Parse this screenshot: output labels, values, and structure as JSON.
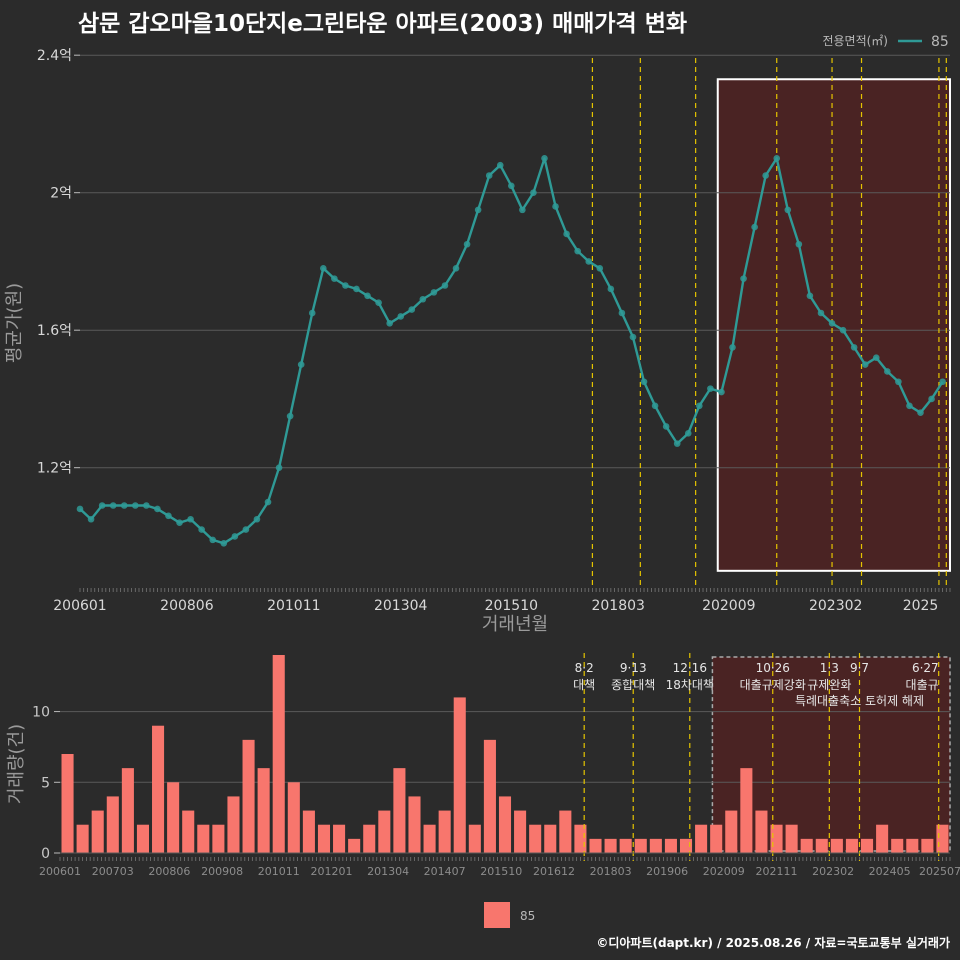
{
  "title": "삼문 갑오마을10단지e그린타운 아파트(2003) 매매가격 변화",
  "footer": "©디아파트(dapt.kr) / 2025.08.26 / 자료=국토교통부 실거래가",
  "colors": {
    "background": "#2b2b2b",
    "price_series": "#2f9a96",
    "volume_bars": "#f8766d",
    "policy_lines": "#e5c400",
    "highlight_fill": "#4a2323",
    "highlight_border": "#ffffff"
  },
  "chart_data": [
    {
      "type": "line",
      "name": "price",
      "xlabel": "거래년월",
      "ylabel": "평균가(원)",
      "legend": {
        "title": "전용면적(㎡)",
        "entries": [
          "85"
        ],
        "placement": "top-right"
      },
      "x_tick_labels": [
        "200601",
        "200806",
        "201011",
        "201304",
        "201510",
        "201803",
        "202009",
        "202302",
        "2025"
      ],
      "y_ticks": [
        1.2,
        1.6,
        2.0,
        2.4
      ],
      "y_tick_labels": [
        "1.2억",
        "1.6억",
        "2억",
        "2.4억"
      ],
      "ylim": [
        0.85,
        2.45
      ],
      "xlim": [
        "2006-01",
        "2025-08"
      ],
      "grid": true,
      "policy_dates": [
        "2017-08",
        "2018-09",
        "2019-12",
        "2021-10",
        "2023-01",
        "2023-09",
        "2025-06",
        "2025-08"
      ],
      "highlight_range": {
        "x": [
          "2020-06",
          "2025-08"
        ],
        "y": [
          0.9,
          2.33
        ]
      },
      "series": [
        {
          "name": "85",
          "x": [
            "2006-01",
            "2006-04",
            "2006-07",
            "2006-10",
            "2007-01",
            "2007-04",
            "2007-07",
            "2007-10",
            "2008-01",
            "2008-04",
            "2008-07",
            "2008-10",
            "2009-01",
            "2009-04",
            "2009-07",
            "2009-10",
            "2010-01",
            "2010-04",
            "2010-07",
            "2010-10",
            "2011-01",
            "2011-04",
            "2011-07",
            "2011-10",
            "2012-01",
            "2012-04",
            "2012-07",
            "2012-10",
            "2013-01",
            "2013-04",
            "2013-07",
            "2013-10",
            "2014-01",
            "2014-04",
            "2014-07",
            "2014-10",
            "2015-01",
            "2015-04",
            "2015-07",
            "2015-10",
            "2016-01",
            "2016-04",
            "2016-07",
            "2016-10",
            "2017-01",
            "2017-04",
            "2017-07",
            "2017-10",
            "2018-01",
            "2018-04",
            "2018-07",
            "2018-10",
            "2019-01",
            "2019-04",
            "2019-07",
            "2019-10",
            "2020-01",
            "2020-04",
            "2020-07",
            "2020-10",
            "2021-01",
            "2021-04",
            "2021-07",
            "2021-10",
            "2022-01",
            "2022-04",
            "2022-07",
            "2022-10",
            "2023-01",
            "2023-04",
            "2023-07",
            "2023-10",
            "2024-01",
            "2024-04",
            "2024-07",
            "2024-10",
            "2025-01",
            "2025-04",
            "2025-07"
          ],
          "y": [
            1.08,
            1.05,
            1.09,
            1.09,
            1.09,
            1.09,
            1.09,
            1.08,
            1.06,
            1.04,
            1.05,
            1.02,
            0.99,
            0.98,
            1.0,
            1.02,
            1.05,
            1.1,
            1.2,
            1.35,
            1.5,
            1.65,
            1.78,
            1.75,
            1.73,
            1.72,
            1.7,
            1.68,
            1.62,
            1.64,
            1.66,
            1.69,
            1.71,
            1.73,
            1.78,
            1.85,
            1.95,
            2.05,
            2.08,
            2.02,
            1.95,
            2.0,
            2.1,
            1.96,
            1.88,
            1.83,
            1.8,
            1.78,
            1.72,
            1.65,
            1.58,
            1.45,
            1.38,
            1.32,
            1.27,
            1.3,
            1.38,
            1.43,
            1.42,
            1.55,
            1.75,
            1.9,
            2.05,
            2.1,
            1.95,
            1.85,
            1.7,
            1.65,
            1.62,
            1.6,
            1.55,
            1.5,
            1.52,
            1.48,
            1.45,
            1.38,
            1.36,
            1.4,
            1.45
          ]
        }
      ]
    },
    {
      "type": "bar",
      "name": "volume",
      "xlabel": "",
      "ylabel": "거래량(건)",
      "legend": {
        "entries": [
          "85"
        ],
        "placement": "bottom"
      },
      "x_tick_labels": [
        "200601",
        "200703",
        "200806",
        "200908",
        "201011",
        "201201",
        "201304",
        "201407",
        "201510",
        "201612",
        "201803",
        "201906",
        "202009",
        "202111",
        "202302",
        "202405",
        "202507"
      ],
      "y_ticks": [
        0,
        5,
        10
      ],
      "ylim": [
        0,
        14
      ],
      "grid": true,
      "policy_events": [
        {
          "date": "2017-08",
          "date_label": "8·2",
          "name": "대책"
        },
        {
          "date": "2018-09",
          "date_label": "9·13",
          "name": "종합대책"
        },
        {
          "date": "2019-12",
          "date_label": "12·16",
          "name": "18차대책"
        },
        {
          "date": "2021-10",
          "date_label": "10·26",
          "name": "대출규제강화"
        },
        {
          "date": "2023-01",
          "date_label": "1·3",
          "name": "규제완화"
        },
        {
          "date": "2023-09",
          "date_label": "9·7",
          "name": "특례대출축소 토허제 해제"
        },
        {
          "date": "2025-06",
          "date_label": "6·27",
          "name": "대출규"
        }
      ],
      "highlight_range": {
        "x": [
          "2020-06",
          "2025-08"
        ]
      },
      "categories": [
        "2006-01",
        "2006-05",
        "2006-09",
        "2007-01",
        "2007-05",
        "2007-09",
        "2008-01",
        "2008-05",
        "2008-09",
        "2009-01",
        "2009-05",
        "2009-09",
        "2010-01",
        "2010-05",
        "2010-09",
        "2011-01",
        "2011-05",
        "2011-09",
        "2012-01",
        "2012-05",
        "2012-09",
        "2013-01",
        "2013-05",
        "2013-09",
        "2014-01",
        "2014-05",
        "2014-09",
        "2015-01",
        "2015-05",
        "2015-09",
        "2016-01",
        "2016-05",
        "2016-09",
        "2017-01",
        "2017-05",
        "2017-09",
        "2018-01",
        "2018-05",
        "2018-09",
        "2019-01",
        "2019-05",
        "2019-09",
        "2020-01",
        "2020-05",
        "2020-09",
        "2021-01",
        "2021-05",
        "2021-09",
        "2022-01",
        "2022-05",
        "2022-09",
        "2023-01",
        "2023-05",
        "2023-09",
        "2024-01",
        "2024-05",
        "2024-09",
        "2025-01",
        "2025-05"
      ],
      "values": [
        7,
        2,
        3,
        4,
        6,
        2,
        9,
        5,
        3,
        2,
        2,
        4,
        8,
        6,
        14,
        5,
        3,
        2,
        2,
        1,
        2,
        3,
        6,
        4,
        2,
        3,
        11,
        2,
        8,
        4,
        3,
        2,
        2,
        3,
        2,
        1,
        1,
        1,
        1,
        1,
        1,
        1,
        2,
        2,
        3,
        6,
        3,
        2,
        2,
        1,
        1,
        1,
        1,
        1,
        2,
        1,
        1,
        1,
        2
      ]
    }
  ]
}
